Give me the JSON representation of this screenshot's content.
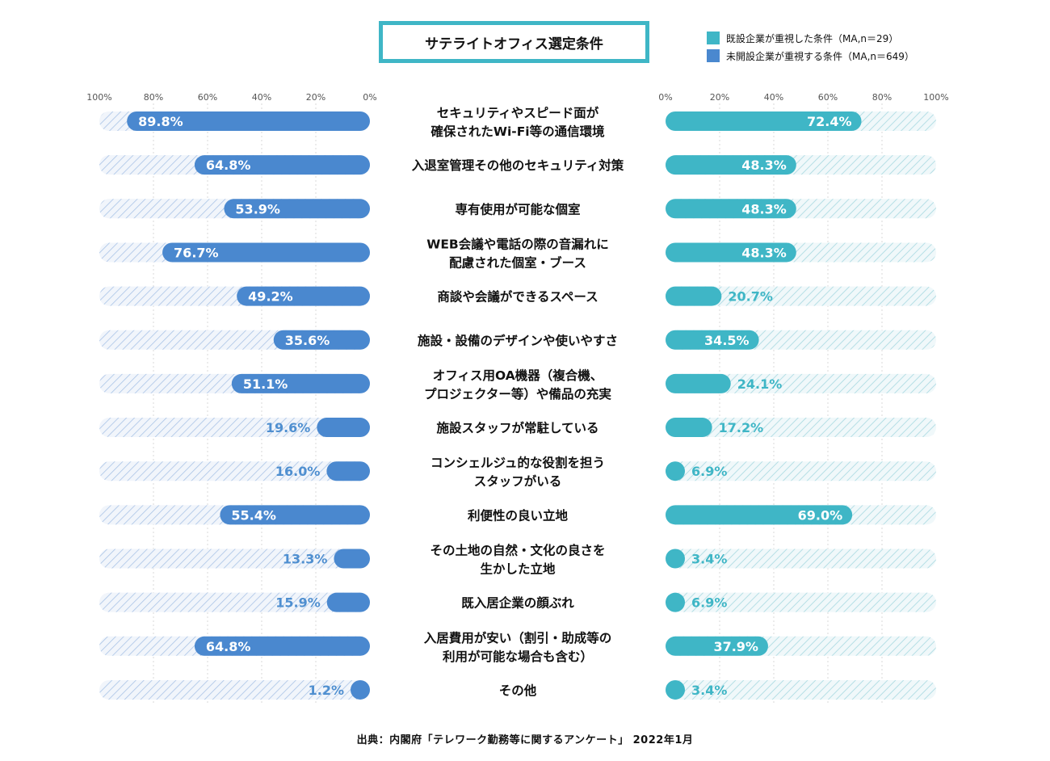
{
  "title": "サテライトオフィス選定条件",
  "legend": [
    {
      "label": "既設企業が重視した条件（MA,n＝29）",
      "color": "#3fb6c6"
    },
    {
      "label": "未開設企業が重視する条件（MA,n＝649）",
      "color": "#4a88cf"
    }
  ],
  "source": "出典：内閣府「テレワーク勤務等に関するアンケート」 2022年1月",
  "chart_data": {
    "type": "bar",
    "orientation": "horizontal-butterfly",
    "left_ticks": [
      "100%",
      "80%",
      "60%",
      "40%",
      "20%",
      "0%"
    ],
    "right_ticks": [
      "0%",
      "20%",
      "40%",
      "60%",
      "80%",
      "100%"
    ],
    "xlim": [
      0,
      100
    ],
    "categories": [
      [
        "セキュリティやスピード面が",
        "確保されたWi-Fi等の通信環境"
      ],
      [
        "入退室管理その他のセキュリティ対策"
      ],
      [
        "専有使用が可能な個室"
      ],
      [
        "WEB会議や電話の際の音漏れに",
        "配慮された個室・ブース"
      ],
      [
        "商談や会議ができるスペース"
      ],
      [
        "施設・設備のデザインや使いやすさ"
      ],
      [
        "オフィス用OA機器（複合機、",
        "プロジェクター等）や備品の充実"
      ],
      [
        "施設スタッフが常駐している"
      ],
      [
        "コンシェルジュ的な役割を担う",
        "スタッフがいる"
      ],
      [
        "利便性の良い立地"
      ],
      [
        "その土地の自然・文化の良さを",
        "生かした立地"
      ],
      [
        "既入居企業の顔ぶれ"
      ],
      [
        "入居費用が安い（割引・助成等の",
        "利用が可能な場合も含む）"
      ],
      [
        "その他"
      ]
    ],
    "series": [
      {
        "name": "未開設企業が重視する条件（MA,n＝649）",
        "side": "left",
        "color": "#4a88cf",
        "values": [
          89.8,
          64.8,
          53.9,
          76.7,
          49.2,
          35.6,
          51.1,
          19.6,
          16.0,
          55.4,
          13.3,
          15.9,
          64.8,
          1.2
        ],
        "labels": [
          "89.8%",
          "64.8%",
          "53.9%",
          "76.7%",
          "49.2%",
          "35.6%",
          "51.1%",
          "19.6%",
          "16.0%",
          "55.4%",
          "13.3%",
          "15.9%",
          "64.8%",
          "1.2%"
        ]
      },
      {
        "name": "既設企業が重視した条件（MA,n＝29）",
        "side": "right",
        "color": "#3fb6c6",
        "values": [
          72.4,
          48.3,
          48.3,
          48.3,
          20.7,
          34.5,
          24.1,
          17.2,
          6.9,
          69.0,
          3.4,
          6.9,
          37.9,
          3.4
        ],
        "labels": [
          "72.4%",
          "48.3%",
          "48.3%",
          "48.3%",
          "20.7%",
          "34.5%",
          "24.1%",
          "17.2%",
          "6.9%",
          "69.0%",
          "3.4%",
          "6.9%",
          "37.9%",
          "3.4%"
        ]
      }
    ]
  }
}
